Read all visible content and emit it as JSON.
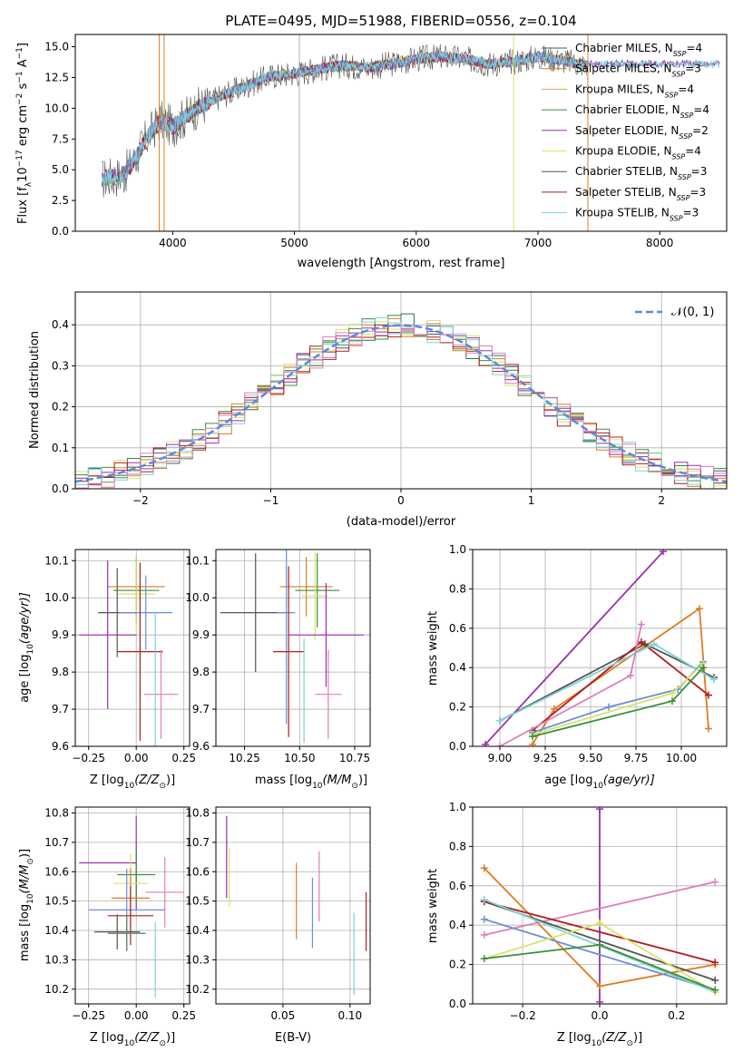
{
  "colors": {
    "chabrier_miles": "#2f6b57",
    "salpeter_miles": "#e07b22",
    "kroupa_miles": "#c9b15a",
    "chabrier_elodie": "#3b8f3b",
    "salpeter_elodie": "#9b2fae",
    "kroupa_elodie": "#d9e36b",
    "chabrier_stelib": "#555555",
    "salpeter_stelib": "#b01c1c",
    "kroupa_stelib": "#7fd3d8",
    "normal_curve": "#5b8bd9",
    "extra_pink": "#e07fb8",
    "extra_blue": "#6a8fd9",
    "extra_green": "#5a8a5a",
    "extra_lime": "#b8e060"
  },
  "chart_data": [
    {
      "id": "spectrum",
      "type": "line",
      "title": "PLATE=0495, MJD=51988, FIBERID=0556, z=0.104",
      "xlabel": "wavelength [Angstrom, rest frame]",
      "ylabel": "Flux [f",
      "ylabel_parts": [
        "Flux [f",
        "λ",
        "10",
        "−17",
        " erg cm",
        "−2",
        " s",
        "−1",
        " A",
        "−1",
        "]"
      ],
      "xlim": [
        3200,
        8550
      ],
      "ylim": [
        0,
        16
      ],
      "xticks": [
        4000,
        5000,
        6000,
        7000,
        8000
      ],
      "yticks": [
        0.0,
        2.5,
        5.0,
        7.5,
        10.0,
        12.5,
        15.0
      ],
      "data_x": [
        3400,
        3600,
        3700,
        3800,
        3900,
        4000,
        4200,
        4400,
        4600,
        4800,
        5000,
        5200,
        5400,
        5600,
        5800,
        6000,
        6200,
        6400,
        6600,
        6800,
        7000,
        7200,
        7400
      ],
      "data_y": [
        4.2,
        4.6,
        6.0,
        7.8,
        9.0,
        8.5,
        10.0,
        11.0,
        11.8,
        12.6,
        12.8,
        13.2,
        13.5,
        13.3,
        13.6,
        14.0,
        14.2,
        14.0,
        13.6,
        13.8,
        14.2,
        13.9,
        13.5
      ],
      "legend": [
        {
          "label": "Chabrier MILES, N",
          "sub": "SSP",
          "tail": "=4",
          "color_key": "chabrier_miles"
        },
        {
          "label": "Salpeter MILES, N",
          "sub": "SSP",
          "tail": "=3",
          "color_key": "salpeter_miles"
        },
        {
          "label": "Kroupa MILES, N",
          "sub": "SSP",
          "tail": "=4",
          "color_key": "kroupa_miles"
        },
        {
          "label": "Chabrier ELODIE, N",
          "sub": "SSP",
          "tail": "=4",
          "color_key": "chabrier_elodie"
        },
        {
          "label": "Salpeter ELODIE, N",
          "sub": "SSP",
          "tail": "=2",
          "color_key": "salpeter_elodie"
        },
        {
          "label": "Kroupa ELODIE, N",
          "sub": "SSP",
          "tail": "=4",
          "color_key": "kroupa_elodie"
        },
        {
          "label": "Chabrier STELIB, N",
          "sub": "SSP",
          "tail": "=3",
          "color_key": "chabrier_stelib"
        },
        {
          "label": "Salpeter STELIB, N",
          "sub": "SSP",
          "tail": "=3",
          "color_key": "salpeter_stelib"
        },
        {
          "label": "Kroupa STELIB, N",
          "sub": "SSP",
          "tail": "=3",
          "color_key": "kroupa_stelib"
        }
      ]
    },
    {
      "id": "residual_hist",
      "type": "line",
      "xlabel": "(data-model)/error",
      "ylabel": "Normed distribution",
      "xlim": [
        -2.5,
        2.5
      ],
      "ylim": [
        0,
        0.48
      ],
      "xticks": [
        -2,
        -1,
        0,
        1,
        2
      ],
      "xtick_labels": [
        "−2",
        "−1",
        "0",
        "1",
        "2"
      ],
      "yticks": [
        0.0,
        0.1,
        0.2,
        0.3,
        0.4
      ],
      "legend_label": "𝒩(0, 1)",
      "grid": true
    },
    {
      "id": "age_vs_Z",
      "type": "scatter",
      "xlabel": "Z [log",
      "xlabel_parts": [
        "Z [log",
        "10",
        "(Z/Z",
        "⊙",
        ")]"
      ],
      "ylabel_parts": [
        "age  [log",
        "10",
        "(age/yr)]"
      ],
      "xlim": [
        -0.32,
        0.28
      ],
      "ylim": [
        9.6,
        10.13
      ],
      "xticks": [
        -0.25,
        0.0,
        0.25
      ],
      "xtick_labels": [
        "−0.25",
        "0.00",
        "0.25"
      ],
      "yticks": [
        9.6,
        9.7,
        9.8,
        9.9,
        10.0,
        10.1
      ],
      "points": [
        {
          "x": 0.0,
          "y": 10.03,
          "xerr": 0.15,
          "yerr": 0.08,
          "color_key": "salpeter_miles"
        },
        {
          "x": 0.0,
          "y": 10.02,
          "xerr": 0.12,
          "yerr": 0.09,
          "color_key": "chabrier_elodie"
        },
        {
          "x": 0.0,
          "y": 10.01,
          "xerr": 0.1,
          "yerr": 0.1,
          "color_key": "kroupa_elodie"
        },
        {
          "x": -0.1,
          "y": 9.96,
          "xerr": 0.1,
          "yerr": 0.12,
          "color_key": "chabrier_stelib"
        },
        {
          "x": 0.05,
          "y": 9.96,
          "xerr": 0.14,
          "yerr": 0.1,
          "color_key": "extra_blue"
        },
        {
          "x": -0.15,
          "y": 9.9,
          "xerr": 0.15,
          "yerr": 0.2,
          "color_key": "salpeter_elodie"
        },
        {
          "x": 0.02,
          "y": 9.855,
          "xerr": 0.12,
          "yerr": 0.24,
          "color_key": "salpeter_stelib"
        },
        {
          "x": 0.13,
          "y": 9.74,
          "xerr": 0.09,
          "yerr": 0.12,
          "color_key": "extra_pink"
        },
        {
          "x": 0.1,
          "y": 9.7,
          "xerr": 0.0,
          "yerr": 0.26,
          "color_key": "kroupa_stelib"
        }
      ]
    },
    {
      "id": "age_vs_mass",
      "type": "scatter",
      "xlabel_parts": [
        "mass [log",
        "10",
        "(M/M",
        "⊙",
        ")]"
      ],
      "xlim": [
        10.12,
        10.82
      ],
      "ylim": [
        9.6,
        10.13
      ],
      "xticks": [
        10.25,
        10.5,
        10.75
      ],
      "yticks": [
        9.6,
        9.7,
        9.8,
        9.9,
        10.0,
        10.1
      ],
      "points": [
        {
          "x": 10.53,
          "y": 10.03,
          "xerr": 0.12,
          "yerr": 0.08,
          "color_key": "salpeter_miles"
        },
        {
          "x": 10.58,
          "y": 10.02,
          "xerr": 0.1,
          "yerr": 0.1,
          "color_key": "chabrier_elodie"
        },
        {
          "x": 10.57,
          "y": 10.005,
          "xerr": 0.06,
          "yerr": 0.12,
          "color_key": "kroupa_elodie"
        },
        {
          "x": 10.3,
          "y": 9.96,
          "xerr": 0.16,
          "yerr": 0.16,
          "color_key": "chabrier_stelib"
        },
        {
          "x": 10.44,
          "y": 9.96,
          "xerr": 0.04,
          "yerr": 0.3,
          "color_key": "extra_blue"
        },
        {
          "x": 10.62,
          "y": 9.9,
          "xerr": 0.17,
          "yerr": 0.14,
          "color_key": "salpeter_elodie"
        },
        {
          "x": 10.45,
          "y": 9.855,
          "xerr": 0.07,
          "yerr": 0.23,
          "color_key": "salpeter_stelib"
        },
        {
          "x": 10.63,
          "y": 9.74,
          "xerr": 0.06,
          "yerr": 0.12,
          "color_key": "extra_pink"
        },
        {
          "x": 10.52,
          "y": 9.75,
          "xerr": 0.0,
          "yerr": 0.14,
          "color_key": "kroupa_stelib"
        }
      ]
    },
    {
      "id": "weight_vs_age",
      "type": "line",
      "xlabel_parts": [
        "age  [log",
        "10",
        "(age/yr)]"
      ],
      "ylabel": "mass weight",
      "xlim": [
        8.85,
        10.25
      ],
      "ylim": [
        0,
        1.0
      ],
      "xticks": [
        9.0,
        9.25,
        9.5,
        9.75,
        10.0
      ],
      "xtick_labels": [
        "9.00",
        "9.25",
        "9.50",
        "9.75",
        "10.00"
      ],
      "yticks": [
        0.0,
        0.2,
        0.4,
        0.6,
        0.8,
        1.0
      ],
      "series": [
        {
          "color_key": "salpeter_elodie",
          "x": [
            8.92,
            9.9
          ],
          "y": [
            0.01,
            0.99
          ]
        },
        {
          "color_key": "salpeter_miles",
          "x": [
            9.18,
            9.3,
            10.1,
            10.15
          ],
          "y": [
            0.01,
            0.19,
            0.7,
            0.09
          ]
        },
        {
          "color_key": "chabrier_stelib",
          "x": [
            9.0,
            9.8,
            10.18
          ],
          "y": [
            0.13,
            0.52,
            0.35
          ]
        },
        {
          "color_key": "salpeter_stelib",
          "x": [
            9.18,
            9.78,
            10.15
          ],
          "y": [
            0.08,
            0.53,
            0.26
          ]
        },
        {
          "color_key": "kroupa_stelib",
          "x": [
            9.0,
            9.85,
            10.18
          ],
          "y": [
            0.13,
            0.52,
            0.34
          ]
        },
        {
          "color_key": "extra_pink",
          "x": [
            9.0,
            9.72,
            9.78
          ],
          "y": [
            0.0,
            0.36,
            0.62
          ]
        },
        {
          "color_key": "extra_blue",
          "x": [
            9.18,
            9.6,
            9.98,
            10.12
          ],
          "y": [
            0.07,
            0.2,
            0.29,
            0.43
          ]
        },
        {
          "color_key": "kroupa_elodie",
          "x": [
            9.18,
            9.95,
            10.12
          ],
          "y": [
            0.06,
            0.27,
            0.42
          ]
        },
        {
          "color_key": "chabrier_elodie",
          "x": [
            9.18,
            9.95,
            10.12
          ],
          "y": [
            0.05,
            0.23,
            0.4
          ]
        }
      ]
    },
    {
      "id": "mass_vs_Z",
      "type": "scatter",
      "xlabel_parts": [
        "Z [log",
        "10",
        "(Z/Z",
        "⊙",
        ")]"
      ],
      "ylabel_parts": [
        "mass [log",
        "10",
        "(M/M",
        "⊙",
        ")]"
      ],
      "xlim": [
        -0.32,
        0.28
      ],
      "ylim": [
        10.15,
        10.82
      ],
      "xticks": [
        -0.25,
        0.0,
        0.25
      ],
      "xtick_labels": [
        "−0.25",
        "0.00",
        "0.25"
      ],
      "yticks": [
        10.2,
        10.3,
        10.4,
        10.5,
        10.6,
        10.7,
        10.8
      ],
      "points": [
        {
          "x": -0.15,
          "y": 10.63,
          "xerr": 0.15,
          "yerr": 0.0,
          "color_key": "salpeter_elodie"
        },
        {
          "x": 0.0,
          "y": 10.63,
          "xerr": 0.0,
          "yerr": 0.16,
          "color_key": "salpeter_elodie"
        },
        {
          "x": 0.0,
          "y": 10.59,
          "xerr": 0.1,
          "yerr": 0.1,
          "color_key": "chabrier_elodie"
        },
        {
          "x": -0.03,
          "y": 10.56,
          "xerr": 0.09,
          "yerr": 0.1,
          "color_key": "kroupa_elodie"
        },
        {
          "x": 0.15,
          "y": 10.53,
          "xerr": 0.1,
          "yerr": 0.12,
          "color_key": "extra_pink"
        },
        {
          "x": -0.03,
          "y": 10.51,
          "xerr": 0.1,
          "yerr": 0.1,
          "color_key": "salpeter_miles"
        },
        {
          "x": -0.05,
          "y": 10.47,
          "xerr": 0.2,
          "yerr": 0.14,
          "color_key": "extra_blue"
        },
        {
          "x": -0.03,
          "y": 10.45,
          "xerr": 0.12,
          "yerr": 0.1,
          "color_key": "salpeter_stelib"
        },
        {
          "x": -0.1,
          "y": 10.395,
          "xerr": 0.12,
          "yerr": 0.06,
          "color_key": "chabrier_stelib"
        },
        {
          "x": -0.05,
          "y": 10.39,
          "xerr": 0.1,
          "yerr": 0.06,
          "color_key": "extra_green"
        },
        {
          "x": 0.1,
          "y": 10.3,
          "xerr": 0.0,
          "yerr": 0.13,
          "color_key": "kroupa_stelib"
        }
      ]
    },
    {
      "id": "mass_vs_ebv",
      "type": "scatter",
      "xlabel": "E(B-V)",
      "xlim": [
        0.0,
        0.115
      ],
      "ylim": [
        10.15,
        10.82
      ],
      "xticks": [
        0.05,
        0.1
      ],
      "yticks": [
        10.2,
        10.3,
        10.4,
        10.5,
        10.6,
        10.7,
        10.8
      ],
      "points": [
        {
          "x": 0.008,
          "y": 10.65,
          "xerr": 0.0,
          "yerr": 0.14,
          "color_key": "salpeter_elodie"
        },
        {
          "x": 0.01,
          "y": 10.58,
          "xerr": 0.0,
          "yerr": 0.1,
          "color_key": "kroupa_elodie"
        },
        {
          "x": 0.06,
          "y": 10.5,
          "xerr": 0.0,
          "yerr": 0.13,
          "color_key": "salpeter_miles"
        },
        {
          "x": 0.072,
          "y": 10.46,
          "xerr": 0.0,
          "yerr": 0.12,
          "color_key": "extra_blue"
        },
        {
          "x": 0.077,
          "y": 10.55,
          "xerr": 0.0,
          "yerr": 0.12,
          "color_key": "extra_pink"
        },
        {
          "x": 0.103,
          "y": 10.32,
          "xerr": 0.0,
          "yerr": 0.14,
          "color_key": "kroupa_stelib"
        },
        {
          "x": 0.112,
          "y": 10.43,
          "xerr": 0.0,
          "yerr": 0.1,
          "color_key": "salpeter_stelib"
        }
      ]
    },
    {
      "id": "weight_vs_Z",
      "type": "line",
      "xlabel_parts": [
        "Z [log",
        "10",
        "(Z/Z",
        "⊙",
        ")]"
      ],
      "ylabel": "mass weight",
      "xlim": [
        -0.33,
        0.33
      ],
      "ylim": [
        0,
        1.0
      ],
      "xticks": [
        -0.2,
        0.0,
        0.2
      ],
      "xtick_labels": [
        "−0.2",
        "0.0",
        "0.2"
      ],
      "yticks": [
        0.0,
        0.2,
        0.4,
        0.6,
        0.8,
        1.0
      ],
      "series": [
        {
          "color_key": "salpeter_elodie",
          "x": [
            0.0,
            0.0
          ],
          "y": [
            0.01,
            0.99
          ]
        },
        {
          "color_key": "salpeter_miles",
          "x": [
            -0.3,
            0.0,
            0.3
          ],
          "y": [
            0.69,
            0.09,
            0.2
          ]
        },
        {
          "color_key": "extra_pink",
          "x": [
            -0.3,
            0.3
          ],
          "y": [
            0.35,
            0.62
          ]
        },
        {
          "color_key": "extra_blue",
          "x": [
            -0.3,
            0.3
          ],
          "y": [
            0.43,
            0.07
          ]
        },
        {
          "color_key": "chabrier_stelib",
          "x": [
            -0.3,
            0.3
          ],
          "y": [
            0.52,
            0.12
          ]
        },
        {
          "color_key": "salpeter_stelib",
          "x": [
            -0.3,
            0.3
          ],
          "y": [
            0.52,
            0.21
          ]
        },
        {
          "color_key": "kroupa_stelib",
          "x": [
            -0.3,
            0.3
          ],
          "y": [
            0.53,
            0.06
          ]
        },
        {
          "color_key": "kroupa_elodie",
          "x": [
            -0.3,
            0.0,
            0.3
          ],
          "y": [
            0.23,
            0.41,
            0.06
          ]
        },
        {
          "color_key": "chabrier_elodie",
          "x": [
            -0.3,
            0.0,
            0.3
          ],
          "y": [
            0.23,
            0.3,
            0.07
          ]
        }
      ]
    }
  ]
}
